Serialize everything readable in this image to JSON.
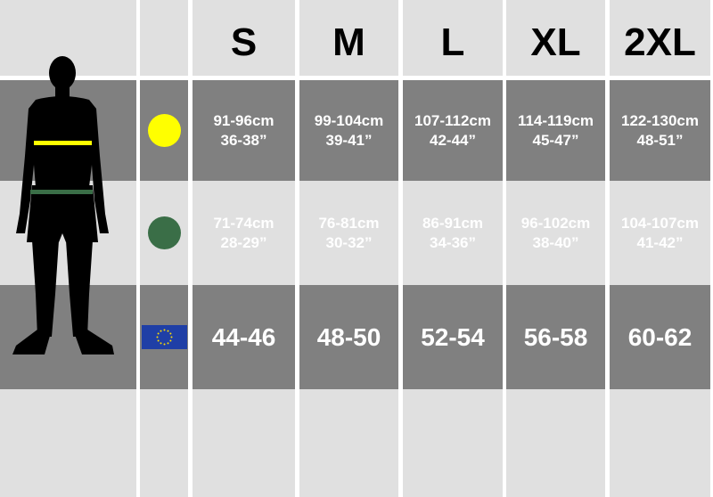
{
  "sizes": [
    "S",
    "M",
    "L",
    "XL",
    "2XL"
  ],
  "rows": [
    {
      "icon": "yellow-circle-icon",
      "color": "#ffff00",
      "values": [
        [
          "91-96cm",
          "36-38”"
        ],
        [
          "99-104cm",
          "39-41”"
        ],
        [
          "107-112cm",
          "42-44”"
        ],
        [
          "114-119cm",
          "45-47”"
        ],
        [
          "122-130cm",
          "48-51”"
        ]
      ]
    },
    {
      "icon": "green-circle-icon",
      "color": "#3a6e47",
      "values": [
        [
          "71-74cm",
          "28-29”"
        ],
        [
          "76-81cm",
          "30-32”"
        ],
        [
          "86-91cm",
          "34-36”"
        ],
        [
          "96-102cm",
          "38-40”"
        ],
        [
          "104-107cm",
          "41-42”"
        ]
      ]
    },
    {
      "icon": "eu-flag-icon",
      "color": "#1f3fa6",
      "values": [
        "44-46",
        "48-50",
        "52-54",
        "56-58",
        "60-62"
      ]
    }
  ],
  "colors": {
    "dark": "#808080",
    "light": "#e0e0e0",
    "chest_marker": "#ffff00",
    "waist_marker": "#3a6e47"
  }
}
